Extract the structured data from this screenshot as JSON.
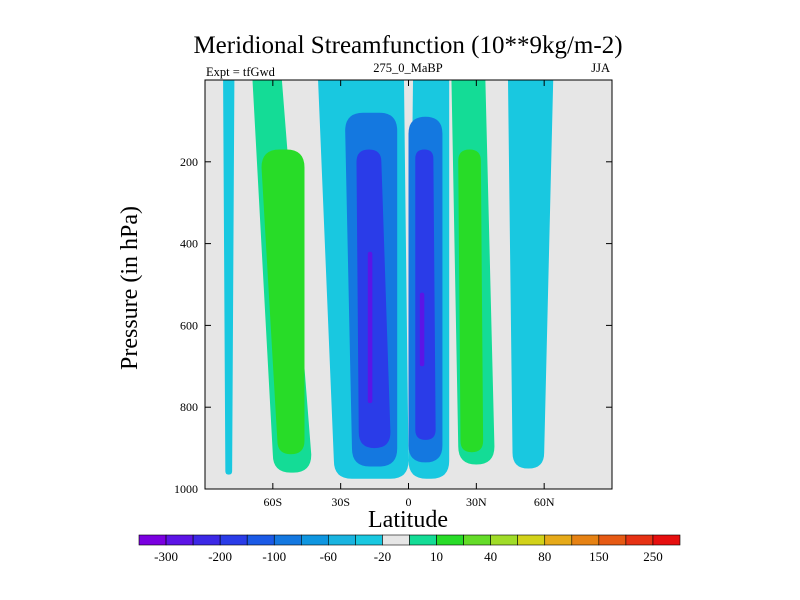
{
  "chart_data": {
    "type": "contour",
    "title": "Meridional Streamfunction (10**9kg/m-2)",
    "left_subtitle": "Expt = tfGwd",
    "center_subtitle": "275_0_MaBP",
    "right_subtitle": "JJA",
    "xlabel": "Latitude",
    "ylabel": "Pressure (in hPa)",
    "xlim": [
      -90,
      90
    ],
    "ylim": [
      1000,
      0
    ],
    "x_ticks": [
      {
        "value": -60,
        "label": "60S"
      },
      {
        "value": -30,
        "label": "30S"
      },
      {
        "value": 0,
        "label": "0"
      },
      {
        "value": 30,
        "label": "30N"
      },
      {
        "value": 60,
        "label": "60N"
      }
    ],
    "y_ticks": [
      {
        "value": 200,
        "label": "200"
      },
      {
        "value": 400,
        "label": "400"
      },
      {
        "value": 600,
        "label": "600"
      },
      {
        "value": 800,
        "label": "800"
      },
      {
        "value": 1000,
        "label": "1000"
      }
    ],
    "background_color": "#e6e6e6",
    "colorbar": {
      "colors": [
        "#7a00e0",
        "#5c14e6",
        "#3c28e6",
        "#2a3ce8",
        "#1b5ae6",
        "#1478e0",
        "#0f96e0",
        "#19b4e0",
        "#19c8e0",
        "#e6e6e6",
        "#14dc96",
        "#28dc28",
        "#64dc28",
        "#a0dc28",
        "#d2d219",
        "#e6aa19",
        "#e68214",
        "#e65a14",
        "#e63214",
        "#e60f0f"
      ],
      "labels": [
        "-300",
        "-200",
        "-100",
        "-60",
        "-20",
        "10",
        "40",
        "80",
        "150",
        "250"
      ]
    },
    "regions": [
      {
        "level": "-20",
        "color": "#19c8e0",
        "lat_top": [
          -82,
          -77
        ],
        "lat_bottom": [
          -81,
          -78
        ],
        "p_top": 0,
        "p_bottom": 965
      },
      {
        "level": "10",
        "color": "#14dc96",
        "lat_top": [
          -69,
          -56
        ],
        "lat_bottom": [
          -60,
          -43
        ],
        "p_top": 0,
        "p_bottom": 960
      },
      {
        "level": "40",
        "color": "#28dc28",
        "lat_top": [
          -65,
          -46
        ],
        "lat_bottom": [
          -58,
          -46
        ],
        "p_top": 170,
        "p_bottom": 915
      },
      {
        "level": "10",
        "color": "#14dc96",
        "lat_top": [
          19,
          34
        ],
        "lat_bottom": [
          22,
          38
        ],
        "p_top": 0,
        "p_bottom": 940
      },
      {
        "level": "40",
        "color": "#28dc28",
        "lat_top": [
          22,
          32
        ],
        "lat_bottom": [
          23,
          33
        ],
        "p_top": 170,
        "p_bottom": 910
      },
      {
        "level": "-20",
        "color": "#19c8e0",
        "lat_top": [
          44,
          64
        ],
        "lat_bottom": [
          46,
          60
        ],
        "p_top": 0,
        "p_bottom": 950
      },
      {
        "level": "-20",
        "color": "#19c8e0",
        "lat_top": [
          -40,
          -2
        ],
        "lat_bottom": [
          -33,
          0
        ],
        "p_top": 0,
        "p_bottom": 975
      },
      {
        "level": "-20",
        "color": "#19c8e0",
        "lat_top": [
          2,
          18
        ],
        "lat_bottom": [
          0,
          18
        ],
        "p_top": 0,
        "p_bottom": 975
      },
      {
        "level": "-60",
        "color": "#1478e0",
        "lat_top": [
          -28,
          -5
        ],
        "lat_bottom": [
          -25,
          -5
        ],
        "p_top": 80,
        "p_bottom": 945
      },
      {
        "level": "-60",
        "color": "#1478e0",
        "lat_top": [
          0,
          15
        ],
        "lat_bottom": [
          0,
          15
        ],
        "p_top": 90,
        "p_bottom": 935
      },
      {
        "level": "-100",
        "color": "#2a3ce8",
        "lat_top": [
          -23,
          -12
        ],
        "lat_bottom": [
          -22,
          -8
        ],
        "p_top": 170,
        "p_bottom": 900
      },
      {
        "level": "-100",
        "color": "#2a3ce8",
        "lat_top": [
          3,
          11
        ],
        "lat_bottom": [
          3,
          12
        ],
        "p_top": 170,
        "p_bottom": 880
      },
      {
        "level": "-200",
        "color": "#5c14e6",
        "lat_top": [
          -18,
          -16
        ],
        "lat_bottom": [
          -18,
          -16
        ],
        "p_top": 420,
        "p_bottom": 790
      },
      {
        "level": "-200",
        "color": "#5c14e6",
        "lat_top": [
          5,
          7
        ],
        "lat_bottom": [
          5,
          7
        ],
        "p_top": 520,
        "p_bottom": 700
      }
    ]
  }
}
